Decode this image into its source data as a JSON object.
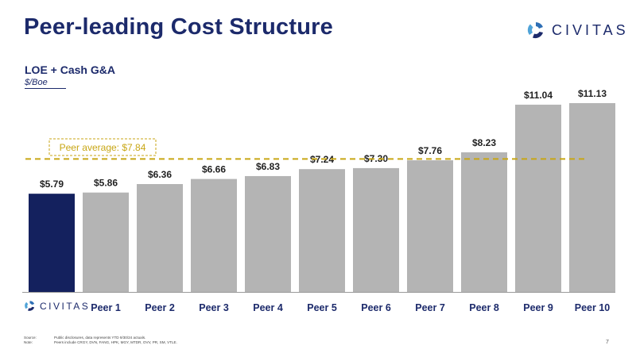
{
  "header": {
    "title": "Peer-leading Cost Structure",
    "logo_text": "CIVITAS"
  },
  "chart_data": {
    "type": "bar",
    "title": "LOE + Cash G&A",
    "ylabel": "$/Boe",
    "categories": [
      "CIVITAS",
      "Peer 1",
      "Peer 2",
      "Peer 3",
      "Peer 4",
      "Peer 5",
      "Peer 6",
      "Peer 7",
      "Peer 8",
      "Peer 9",
      "Peer 10"
    ],
    "values": [
      5.79,
      5.86,
      6.36,
      6.66,
      6.83,
      7.24,
      7.3,
      7.76,
      8.23,
      11.04,
      11.13
    ],
    "value_labels": [
      "$5.79",
      "$5.86",
      "$6.36",
      "$6.66",
      "$6.83",
      "$7.24",
      "$7.30",
      "$7.76",
      "$8.23",
      "$11.04",
      "$11.13"
    ],
    "reference_line": {
      "value": 7.84,
      "label": "Peer average: $7.84"
    },
    "ylim": [
      0,
      11.13
    ],
    "colors": {
      "highlight": "#14215e",
      "peer": "#b4b4b4",
      "average": "#c8a614",
      "text": "#1c2a6b"
    },
    "grid": false,
    "legend": "none"
  },
  "footer": {
    "source_label": "Source:",
    "source_text": "Public disclosures, data represents YTD 9/30/24 actuals.",
    "note_label": "Note:",
    "note_text": "Peers include CRGY, DVN, FANG, HPK, MGY, MTDR, OVV, PR, SM, VTLE.",
    "page_number": "7"
  }
}
